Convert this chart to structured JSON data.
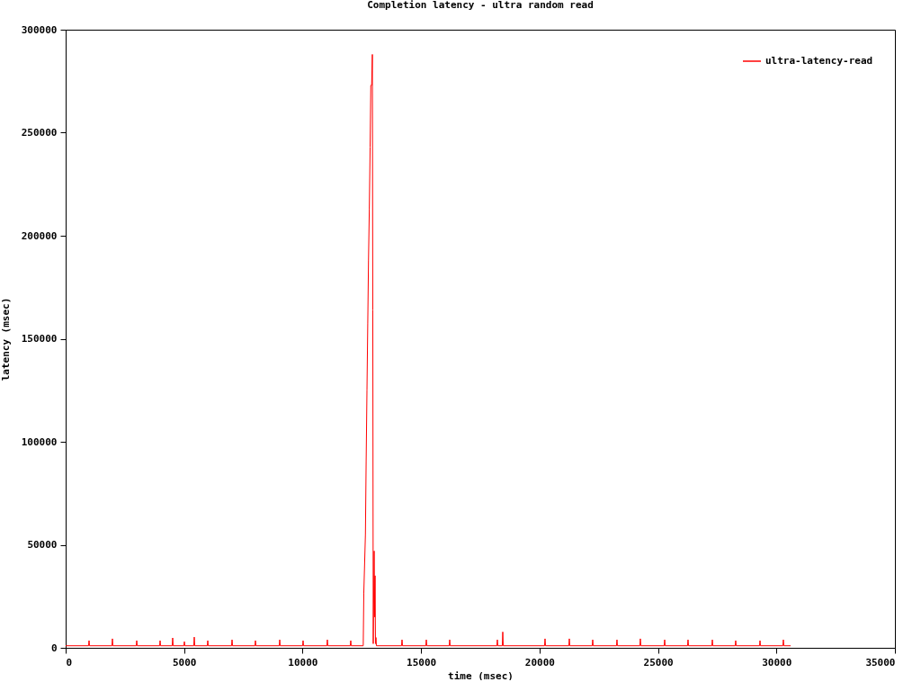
{
  "chart_data": {
    "type": "line",
    "title": "Completion latency - ultra random read",
    "xlabel": "time (msec)",
    "ylabel": "latency (msec)",
    "xlim": [
      0,
      35000
    ],
    "xticks": [
      0,
      5000,
      10000,
      15000,
      20000,
      25000,
      30000,
      35000
    ],
    "ylim": [
      0,
      300000
    ],
    "yticks": [
      0,
      50000,
      100000,
      150000,
      200000,
      250000,
      300000
    ],
    "grid": false,
    "legend": "top right",
    "marker": "none",
    "line_style": "solid",
    "x": [
      0,
      967,
      987,
      1007,
      1954,
      1974,
      1994,
      2980,
      3000,
      3020,
      3966,
      3986,
      4006,
      4497,
      4517,
      4537,
      4991,
      5011,
      5031,
      5408,
      5428,
      5448,
      5978,
      5998,
      6018,
      7003,
      7023,
      7043,
      7990,
      8010,
      8030,
      9015,
      9035,
      9055,
      10001,
      10021,
      10041,
      11026,
      11046,
      11066,
      12013,
      12033,
      12053,
      12560,
      12584,
      12652,
      12683,
      12717,
      12751,
      12782,
      12816,
      12850,
      12880,
      12914,
      12945,
      12963,
      12982,
      13020,
      13039,
      13058,
      13077,
      13096,
      13115,
      14177,
      14197,
      14217,
      15202,
      15222,
      15242,
      16189,
      16209,
      16229,
      18201,
      18221,
      18241,
      18429,
      18449,
      18469,
      20213,
      20233,
      20253,
      21238,
      21258,
      21278,
      22225,
      22245,
      22265,
      23249,
      23269,
      23289,
      24236,
      24256,
      24276,
      25262,
      25282,
      25302,
      26248,
      26268,
      26288,
      27274,
      27294,
      27314,
      28260,
      28280,
      28300,
      29286,
      29306,
      29326,
      30272,
      30292,
      30312,
      30600
    ],
    "series": [
      {
        "name": "ultra-latency-read",
        "color": "#ff0000",
        "values": [
          1000,
          1000,
          3500,
          1000,
          1000,
          4400,
          1000,
          1000,
          3500,
          1000,
          1000,
          3500,
          1000,
          1000,
          4800,
          1000,
          1000,
          3000,
          1000,
          1000,
          5200,
          1000,
          1000,
          3500,
          1000,
          1000,
          3900,
          1000,
          1000,
          3500,
          1000,
          1000,
          3900,
          1000,
          1000,
          3500,
          1000,
          1000,
          3900,
          1000,
          1000,
          3500,
          1000,
          1000,
          26600,
          55000,
          90400,
          125000,
          157600,
          187800,
          212700,
          243000,
          273000,
          273000,
          288000,
          164000,
          2000,
          47000,
          15000,
          35000,
          2000,
          5000,
          1000,
          1000,
          3900,
          1000,
          1000,
          3900,
          1000,
          1000,
          3900,
          1000,
          1000,
          3900,
          1000,
          1000,
          7700,
          1000,
          1000,
          4400,
          1000,
          1000,
          4400,
          1000,
          1000,
          3900,
          1000,
          1000,
          3900,
          1000,
          1000,
          4400,
          1000,
          1000,
          3900,
          1000,
          1000,
          3900,
          1000,
          1000,
          3900,
          1000,
          1000,
          3500,
          1000,
          1000,
          3500,
          1000,
          1000,
          3900,
          1000,
          1000
        ]
      }
    ]
  }
}
